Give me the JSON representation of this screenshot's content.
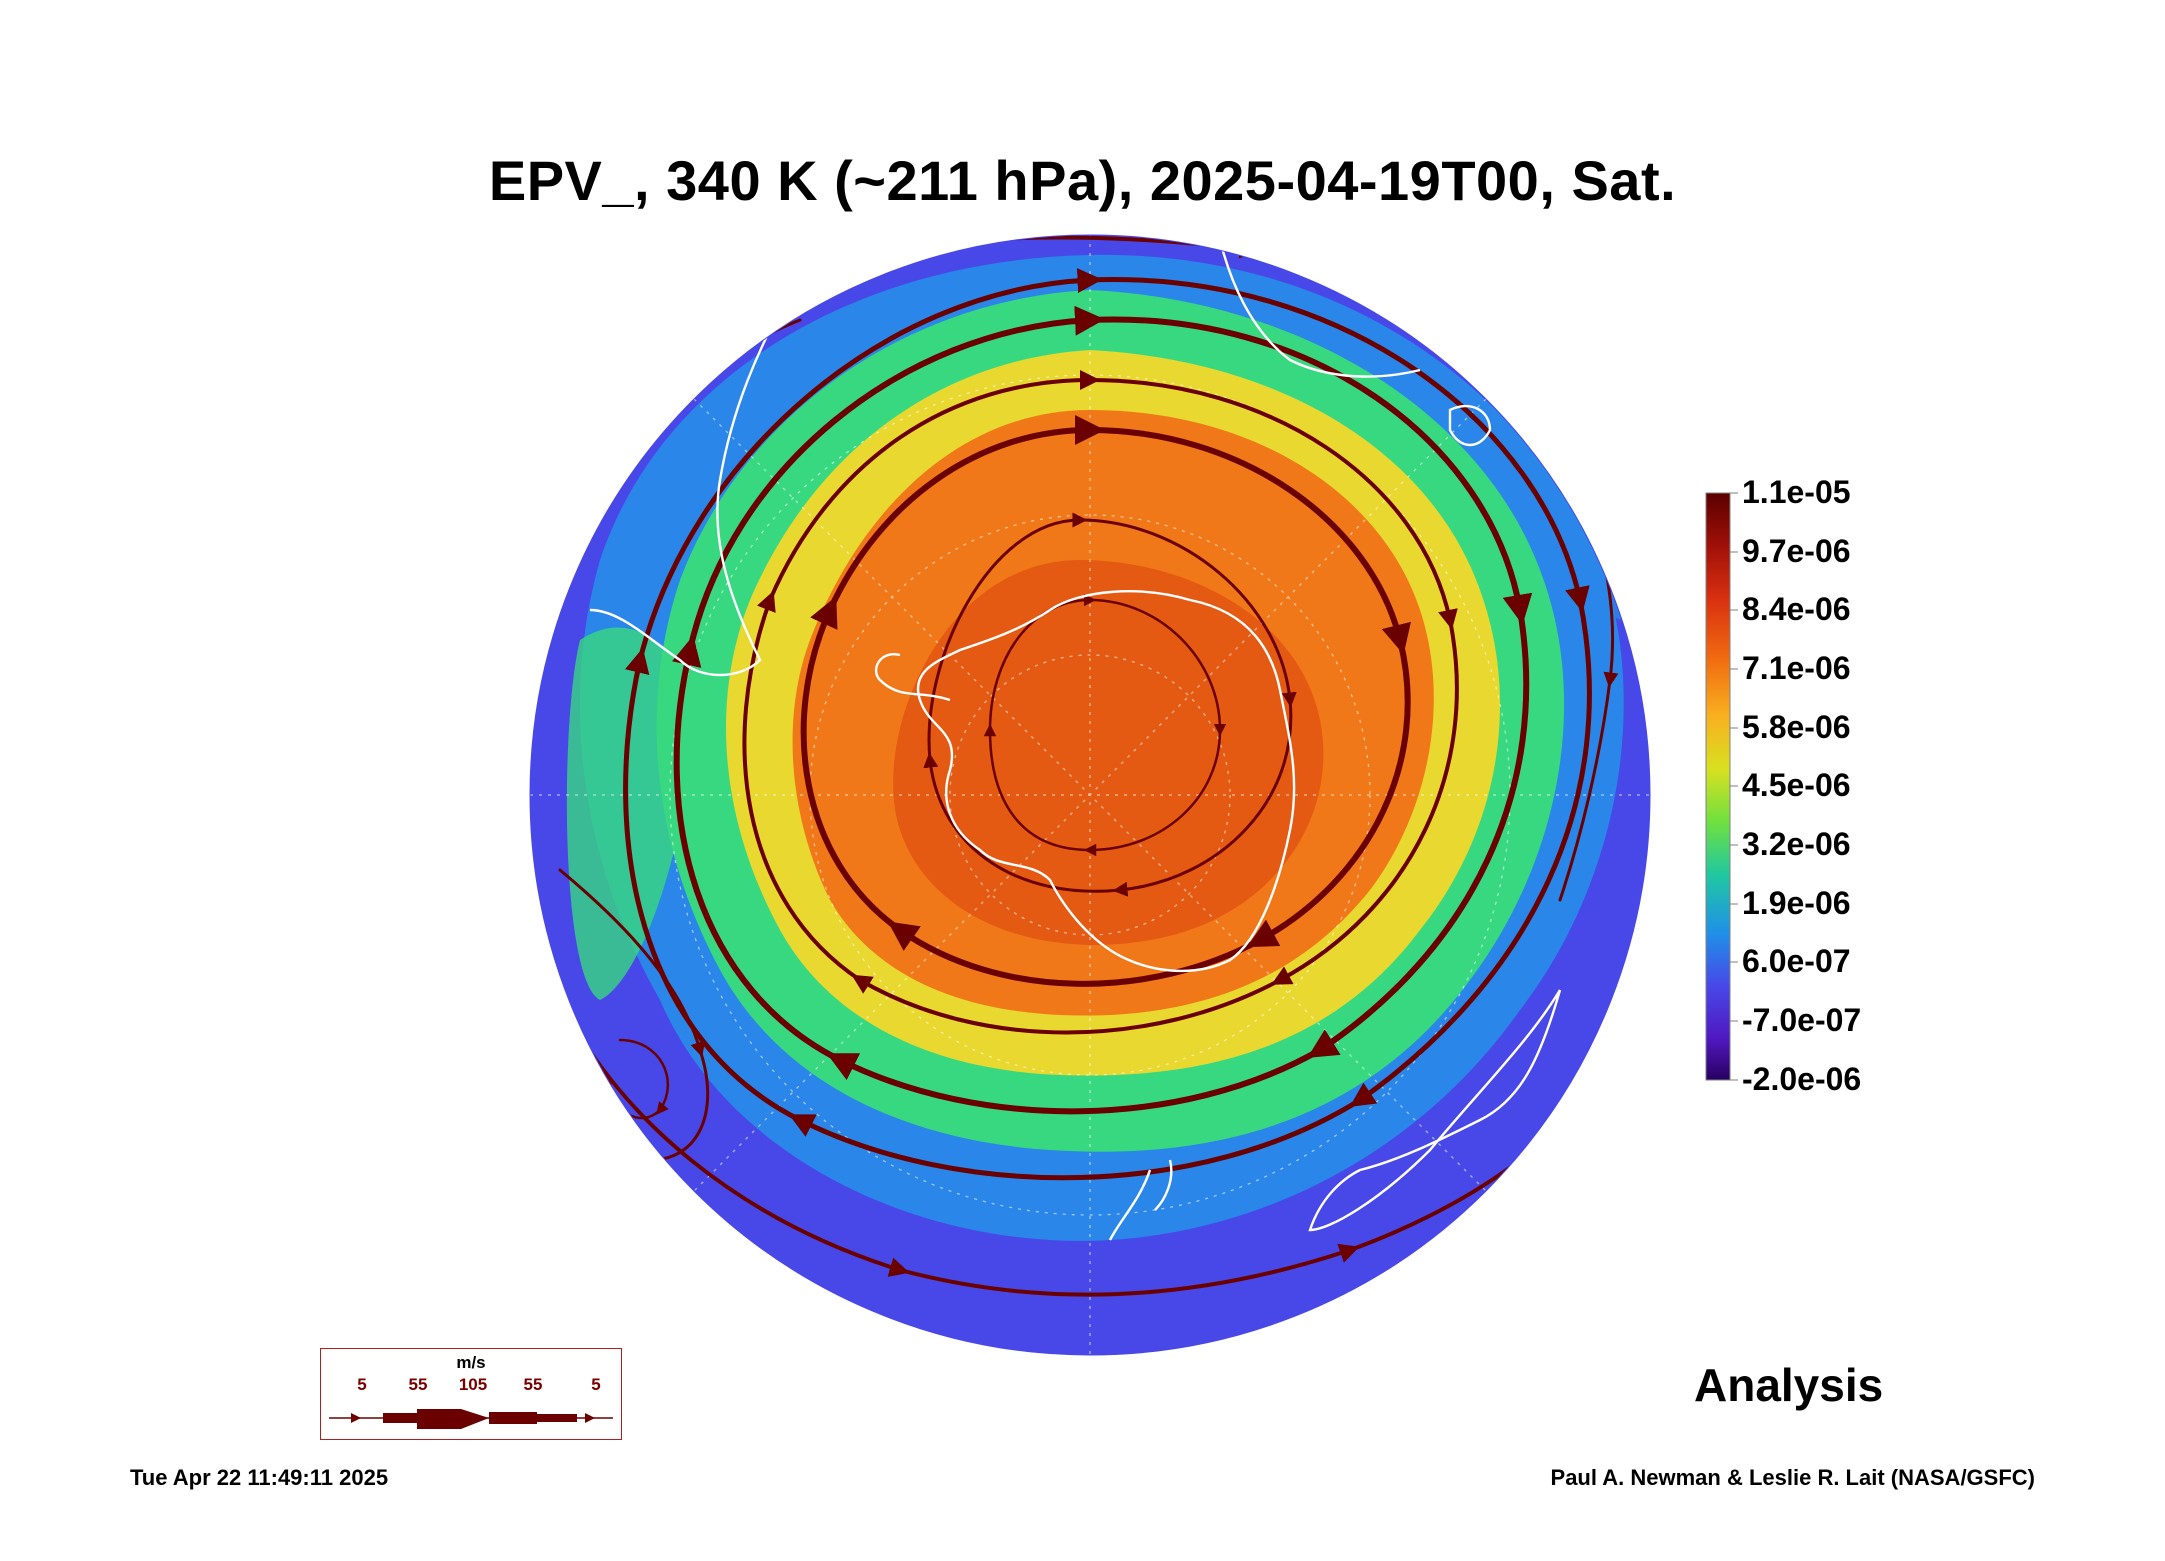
{
  "title": "EPV_, 340 K (~211 hPa), 2025-04-19T00, Sat.",
  "colorbar": {
    "labels": [
      "1.1e-05",
      "9.7e-06",
      "8.4e-06",
      "7.1e-06",
      "5.8e-06",
      "4.5e-06",
      "3.2e-06",
      "1.9e-06",
      "6.0e-07",
      "-7.0e-07",
      "-2.0e-06"
    ],
    "colors": [
      "#5a0000",
      "#a01008",
      "#d83010",
      "#f06a10",
      "#f8b020",
      "#d8e020",
      "#70e040",
      "#20c8a0",
      "#2090e8",
      "#4848e8",
      "#5018c0",
      "#280060"
    ]
  },
  "map": {
    "palette": {
      "outer": "#4848e8",
      "ring_blue": "#2a86e8",
      "ring_green": "#38d880",
      "ring_yellow": "#e8d830",
      "core_orange": "#f07818",
      "core_red": "#e05010",
      "streamline": "#6a0000",
      "coast": "#ffffff"
    }
  },
  "legend": {
    "unit": "m/s",
    "speeds": [
      "5",
      "55",
      "105",
      "55",
      "5"
    ]
  },
  "label": "Analysis",
  "footer": {
    "timestamp": "Tue Apr 22 11:49:11 2025",
    "credit": "Paul A. Newman & Leslie R. Lait (NASA/GSFC)"
  }
}
